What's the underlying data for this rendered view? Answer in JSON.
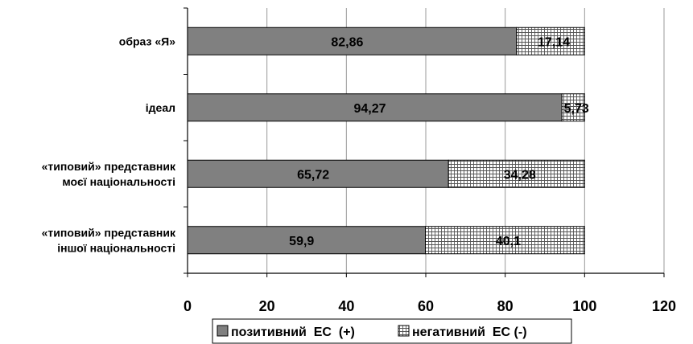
{
  "chart_data": {
    "type": "bar",
    "orientation": "horizontal",
    "stacked": true,
    "categories": [
      [
        "образ «Я»"
      ],
      [
        "ідеал"
      ],
      [
        "«типовий» представник",
        "моєї національності"
      ],
      [
        "«типовий» представник",
        "іншої національності"
      ]
    ],
    "series": [
      {
        "name": "позитивний  ЕС  (+)",
        "values": [
          82.86,
          94.27,
          65.72,
          59.9
        ],
        "labels": [
          "82,86",
          "94,27",
          "65,72",
          "59,9"
        ],
        "color": "#808080",
        "pattern": "solid"
      },
      {
        "name": "негативний  ЕС (-)",
        "values": [
          17.14,
          5.73,
          34.28,
          40.1
        ],
        "labels": [
          "17,14",
          "5,73",
          "34,28",
          "40,1"
        ],
        "color": "#ffffff",
        "pattern": "grid"
      }
    ],
    "xlim": [
      0,
      120
    ],
    "xticks": [
      0,
      20,
      40,
      60,
      80,
      100,
      120
    ],
    "grid": "vertical",
    "legend_position": "bottom"
  }
}
